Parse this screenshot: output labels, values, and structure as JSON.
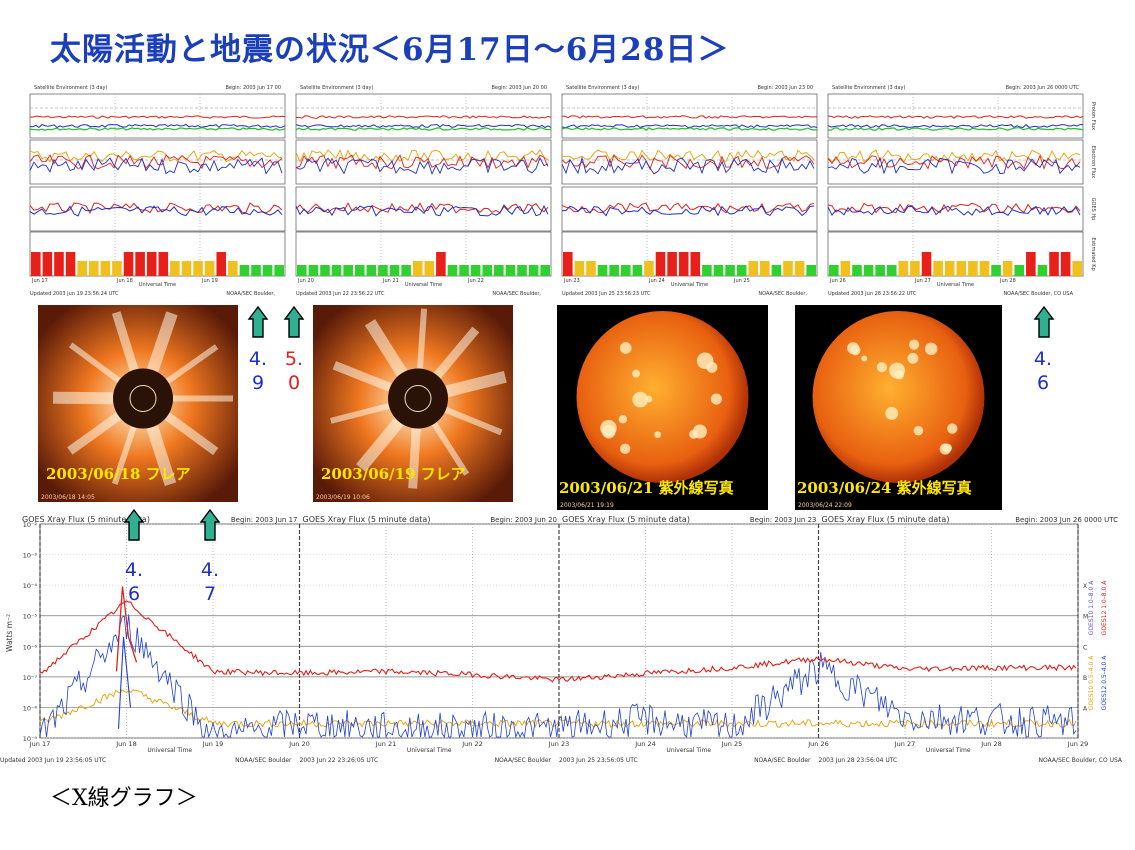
{
  "slide": {
    "title": "太陽活動と地震の状況＜6月17日～6月28日＞",
    "caption": "＜X線グラフ＞"
  },
  "satellite_panels": [
    {
      "header": "Satellite Environment (3 day)",
      "begin": "Begin:  2003 Jun 17 00",
      "footer": "Updated 2003 Jun 19 23:56:24 UTC",
      "source": "NOAA/SEC Boulder,",
      "xtime": "Universal Time",
      "dates": [
        "Jun 17",
        "Jun 18",
        "Jun 19"
      ]
    },
    {
      "header": "Satellite Environment (3 day)",
      "begin": "Begin:  2003 Jun 20 00",
      "footer": "Updated 2003 Jun 22 23:56:22 UTC",
      "source": "NOAA/SEC Boulder,",
      "xtime": "Universal Time",
      "dates": [
        "Jun 20",
        "Jun 21",
        "Jun 22"
      ]
    },
    {
      "header": "Satellite Environment (3 day)",
      "begin": "Begin:  2003 Jun 23 00",
      "footer": "Updated 2003 Jun 25 23:56:23 UTC",
      "source": "NOAA/SEC Boulder,",
      "xtime": "Universal Time",
      "dates": [
        "Jun 23",
        "Jun 24",
        "Jun 25"
      ]
    },
    {
      "header": "Satellite Environment (3 day)",
      "begin": "Begin:  2003 Jun 26 0000 UTC",
      "footer": "Updated 2003 Jun 28 23:56:22 UTC",
      "source": "NOAA/SEC Boulder, CO USA",
      "xtime": "Universal Time",
      "dates": [
        "Jun 26",
        "Jun 27",
        "Jun 28"
      ]
    }
  ],
  "side_axis_labels": [
    "Proton Flux",
    "Electron Flux",
    "GOES Hp",
    "Estimated Kp"
  ],
  "kp_bars": [
    [
      "red",
      "red",
      "red",
      "red",
      "yellow",
      "yellow",
      "yellow",
      "yellow",
      "red",
      "red",
      "red",
      "red",
      "yellow",
      "yellow",
      "yellow",
      "yellow",
      "red",
      "yellow",
      "green",
      "green",
      "green",
      "green"
    ],
    [
      "green",
      "green",
      "green",
      "green",
      "green",
      "green",
      "green",
      "green",
      "green",
      "green",
      "yellow",
      "yellow",
      "red",
      "green",
      "green",
      "green",
      "green",
      "green",
      "green",
      "green",
      "green",
      "green"
    ],
    [
      "red",
      "yellow",
      "yellow",
      "green",
      "green",
      "green",
      "green",
      "yellow",
      "red",
      "red",
      "red",
      "red",
      "green",
      "green",
      "green",
      "green",
      "yellow",
      "yellow",
      "green",
      "yellow",
      "yellow",
      "green"
    ],
    [
      "green",
      "yellow",
      "green",
      "green",
      "green",
      "green",
      "yellow",
      "yellow",
      "red",
      "yellow",
      "yellow",
      "yellow",
      "yellow",
      "yellow",
      "green",
      "yellow",
      "green",
      "red",
      "green",
      "red",
      "red",
      "yellow"
    ]
  ],
  "images": [
    {
      "label": "2003/06/18  フレア",
      "stamp": "2003/06/18 14:05"
    },
    {
      "label": "2003/06/19  フレア",
      "stamp": "2003/06/19 10:06"
    },
    {
      "label": "2003/06/21  紫外線写真",
      "stamp": "2003/06/21 19:19"
    },
    {
      "label": "2003/06/24  紫外線写真",
      "stamp": "2003/06/24 22:09"
    }
  ],
  "quake_markers": [
    {
      "value": "4.9",
      "color": "#1e2fc8"
    },
    {
      "value": "5.0",
      "color": "#e0201a"
    },
    {
      "value": "4.6",
      "color": "#1e2fc8"
    },
    {
      "value": "4.6",
      "color": "#1e2fc8"
    },
    {
      "value": "4.7",
      "color": "#1e2fc8"
    }
  ],
  "xray": {
    "panels": [
      {
        "header": "GOES Xray Flux (5 minute data)",
        "begin": "Begin:  2003 Jun 17",
        "footer": "Updated 2003 Jun 19 23:56:05 UTC",
        "source": "NOAA/SEC Boulder"
      },
      {
        "header": "GOES Xray Flux (5 minute data)",
        "begin": "Begin:  2003 Jun 20",
        "footer": "2003 Jun 22 23:26:05 UTC",
        "source": "NOAA/SEC Boulder"
      },
      {
        "header": "GOES Xray Flux (5 minute data)",
        "begin": "Begin:  2003 Jun 23",
        "footer": "2003 Jun 25 23:56:05 UTC",
        "source": "NOAA/SEC Boulder"
      },
      {
        "header": "GOES Xray Flux (5 minute data)",
        "begin": "Begin:  2003 Jun 26 0000 UTC",
        "footer": "2003 Jun 28 23:56:04 UTC",
        "source": "NOAA/SEC Boulder, CO USA"
      }
    ],
    "ylabel": "Watts m⁻²",
    "xtime": "Universal Time",
    "flare_classes": [
      "X",
      "M",
      "C",
      "B",
      "A"
    ],
    "legend": [
      "GOES10 1.0–8.0 A",
      "GOES12 1.0–8.0 A",
      "GOES10 0.5–4.0 A",
      "GOES12 0.5–4.0 A"
    ]
  },
  "chart_data": [
    {
      "type": "line",
      "title": "GOES Xray Flux (5 minute data)",
      "ylabel": "Watts m⁻²",
      "xlabel": "Universal Time",
      "yscale": "log",
      "ylim": [
        1e-09,
        0.01
      ],
      "yticks": [
        "10⁻²",
        "10⁻³",
        "10⁻⁴",
        "10⁻⁵",
        "10⁻⁶",
        "10⁻⁷",
        "10⁻⁸",
        "10⁻⁹"
      ],
      "x": [
        "Jun 17",
        "Jun 18",
        "Jun 19",
        "Jun 20",
        "Jun 21",
        "Jun 22",
        "Jun 23",
        "Jun 24",
        "Jun 25",
        "Jun 26",
        "Jun 27",
        "Jun 28",
        "Jun 29"
      ],
      "series": [
        {
          "name": "GOES12 1.0–8.0 A",
          "color": "#e0201a",
          "values": [
            1.2e-07,
            3e-05,
            1.5e-07,
            1.3e-07,
            1.5e-07,
            1.2e-07,
            8e-08,
            1.3e-07,
            2e-07,
            4e-07,
            1.8e-07,
            2e-07,
            2e-07
          ]
        },
        {
          "name": "GOES12 0.5–4.0 A",
          "color": "#2040d8",
          "values": [
            1e-09,
            5e-06,
            1e-09,
            3e-09,
            2e-09,
            2e-09,
            2e-09,
            4e-09,
            2e-09,
            2e-07,
            5e-09,
            4e-09,
            3e-09
          ]
        },
        {
          "name": "GOES10 0.5–4.0 A",
          "color": "#e8a000",
          "values": [
            3e-09,
            4e-08,
            3e-09,
            3e-09,
            3e-09,
            3e-09,
            3e-09,
            3e-09,
            3e-09,
            3e-09,
            3e-09,
            3e-09,
            3e-09
          ]
        }
      ]
    },
    {
      "type": "bar",
      "title": "Estimated Kp",
      "xlabel": "Universal Time",
      "categories": [
        "Jun 17",
        "Jun 18",
        "Jun 19",
        "Jun 20",
        "Jun 21",
        "Jun 22",
        "Jun 23",
        "Jun 24",
        "Jun 25",
        "Jun 26",
        "Jun 27",
        "Jun 28"
      ],
      "values": [
        4,
        5,
        3,
        2,
        3,
        2,
        3,
        4,
        2,
        3,
        3,
        4
      ]
    }
  ]
}
